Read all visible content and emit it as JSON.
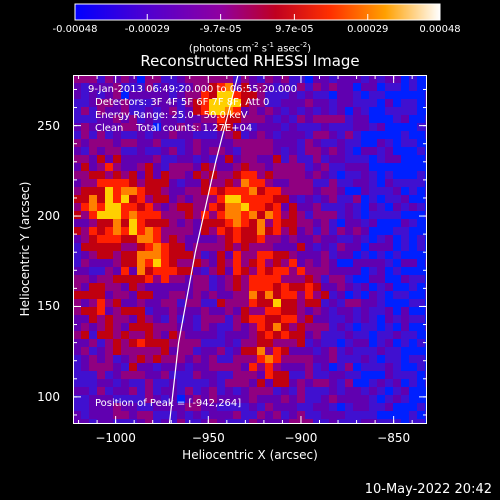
{
  "colorbar": {
    "ticks": [
      "-0.00048",
      "-0.00029",
      "-9.7e-05",
      "9.7e-05",
      "0.00029",
      "0.00048"
    ],
    "units": "(photons cm",
    "units_sup1": "-2",
    "units_mid": " s",
    "units_sup2": "-1",
    "units_end": " asec",
    "units_sup3": "-2",
    "units_close": ")"
  },
  "footer_timestamp": "10-May-2022 20:42",
  "annotations": {
    "line1": "9-Jan-2013 06:49:20.000 to 06:55:20.000",
    "line2": "Detectors: 3F 4F 5F 6F 7F 8F, Att 0",
    "line3": "Energy Range: 25.0 - 50.0 keV",
    "line4": "Clean    Total counts: 1.27E+04",
    "peak": "Position of Peak = [-942,264]"
  },
  "chart_data": {
    "type": "heatmap",
    "title": "Reconstructed RHESSI Image",
    "xlabel": "Heliocentric X (arcsec)",
    "ylabel": "Heliocentric Y (arcsec)",
    "xlim": [
      -1023,
      -832
    ],
    "ylim": [
      85,
      278
    ],
    "xticks": [
      -1000,
      -950,
      -900,
      -850
    ],
    "yticks": [
      100,
      150,
      200,
      250
    ],
    "xtick_labels": [
      "−1000",
      "−950",
      "−900",
      "−850"
    ],
    "ytick_labels": [
      "100",
      "150",
      "200",
      "250"
    ],
    "color_range": [
      -0.00048,
      0.00048
    ],
    "colormap": [
      "#0000ff",
      "#8000c0",
      "#c00000",
      "#ff4000",
      "#ffa000",
      "#ffffff"
    ],
    "peak_position": [
      -942,
      264
    ],
    "limb_curve": [
      [
        -971,
        85
      ],
      [
        -966,
        130
      ],
      [
        -957,
        180
      ],
      [
        -946,
        230
      ],
      [
        -934,
        278
      ]
    ],
    "grid": false
  }
}
